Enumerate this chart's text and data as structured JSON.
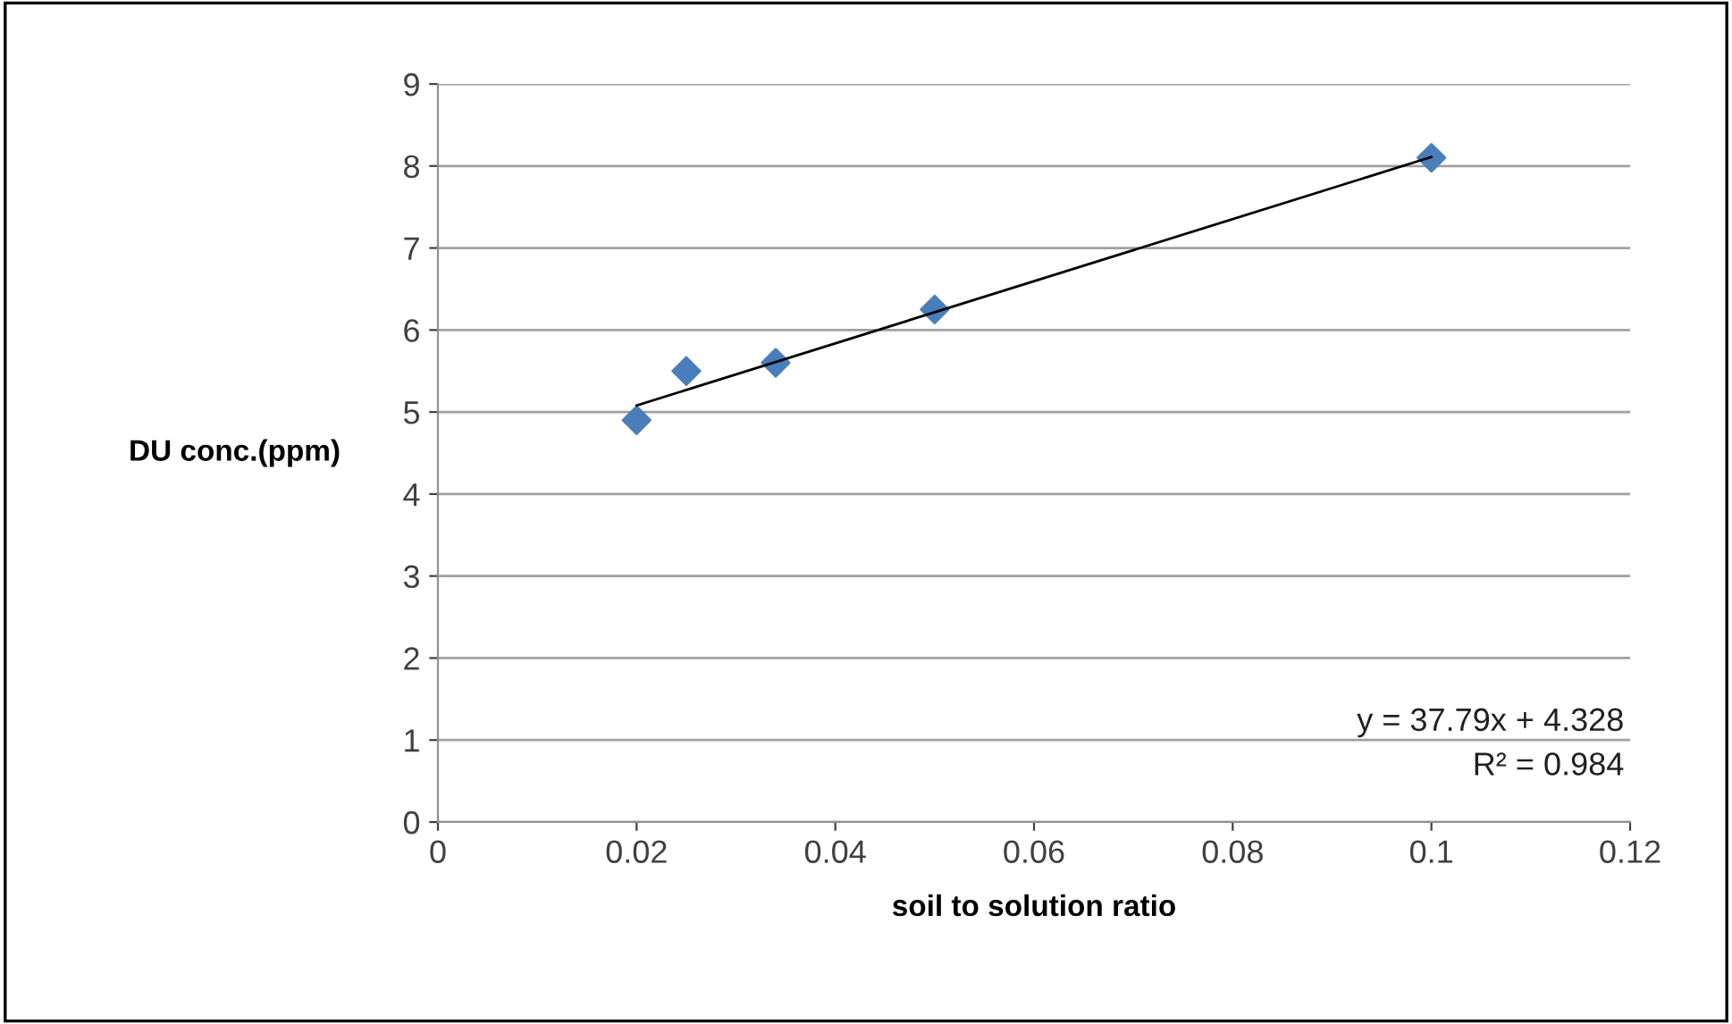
{
  "chart_data": {
    "type": "scatter",
    "xlabel": "soil to solution ratio",
    "ylabel": "DU conc.(ppm)",
    "series": [
      {
        "color": "#4a7ebb",
        "marker": "diamond",
        "x": [
          0.02,
          0.025,
          0.034,
          0.05,
          0.1
        ],
        "values": [
          4.9,
          5.5,
          5.6,
          6.25,
          8.1
        ]
      },
      {
        "type": "line",
        "color": "#000000",
        "marker": "none",
        "line_style": "solid",
        "x": [
          0.02,
          0.1
        ],
        "values": [
          5.08,
          8.11
        ]
      }
    ],
    "xlim": [
      0,
      0.12
    ],
    "xticks": [
      0,
      0.02,
      0.04,
      0.06,
      0.08,
      0.1,
      0.12
    ],
    "ylim": [
      0,
      9
    ],
    "yticks": [
      0,
      1,
      2,
      3,
      4,
      5,
      6,
      7,
      8,
      9
    ],
    "grid": "y",
    "legend": false,
    "annotations": [
      "y = 37.79x + 4.328",
      "R² = 0.984"
    ]
  }
}
